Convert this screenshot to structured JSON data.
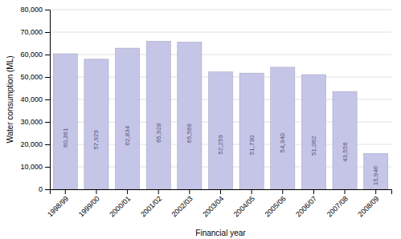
{
  "chart_data": {
    "type": "bar",
    "categories": [
      "1998/99",
      "1999/00",
      "2000/01",
      "2001/02",
      "2002/03",
      "2003/04",
      "2004/05",
      "2005/06",
      "2006/07",
      "2007/08",
      "2008/09"
    ],
    "values": [
      60361,
      57929,
      62834,
      65928,
      65569,
      52259,
      51730,
      54340,
      51062,
      43556,
      15946
    ],
    "value_labels": [
      "60,361",
      "57,929",
      "62,834",
      "65,928",
      "65,569",
      "52,259",
      "51,730",
      "54,340",
      "51,062",
      "43,556",
      "15,946"
    ],
    "data_labels": true,
    "color": "#c5c5e8",
    "xlabel": "Financial year",
    "ylabel": "Water consumption (ML)",
    "ylim": [
      0,
      80000
    ],
    "yticks": [
      0,
      {
        "value": 10000,
        "label": "10,000"
      },
      {
        "value": 20000,
        "label": "20,000"
      },
      {
        "value": 30000,
        "label": "30,000"
      },
      {
        "value": 40000,
        "label": "40,000"
      },
      {
        "value": 50000,
        "label": "50,000"
      },
      {
        "value": 60000,
        "label": "60,000"
      },
      {
        "value": 70000,
        "label": "70,000"
      },
      {
        "value": 80000,
        "label": "80,000"
      }
    ],
    "grid": true
  }
}
